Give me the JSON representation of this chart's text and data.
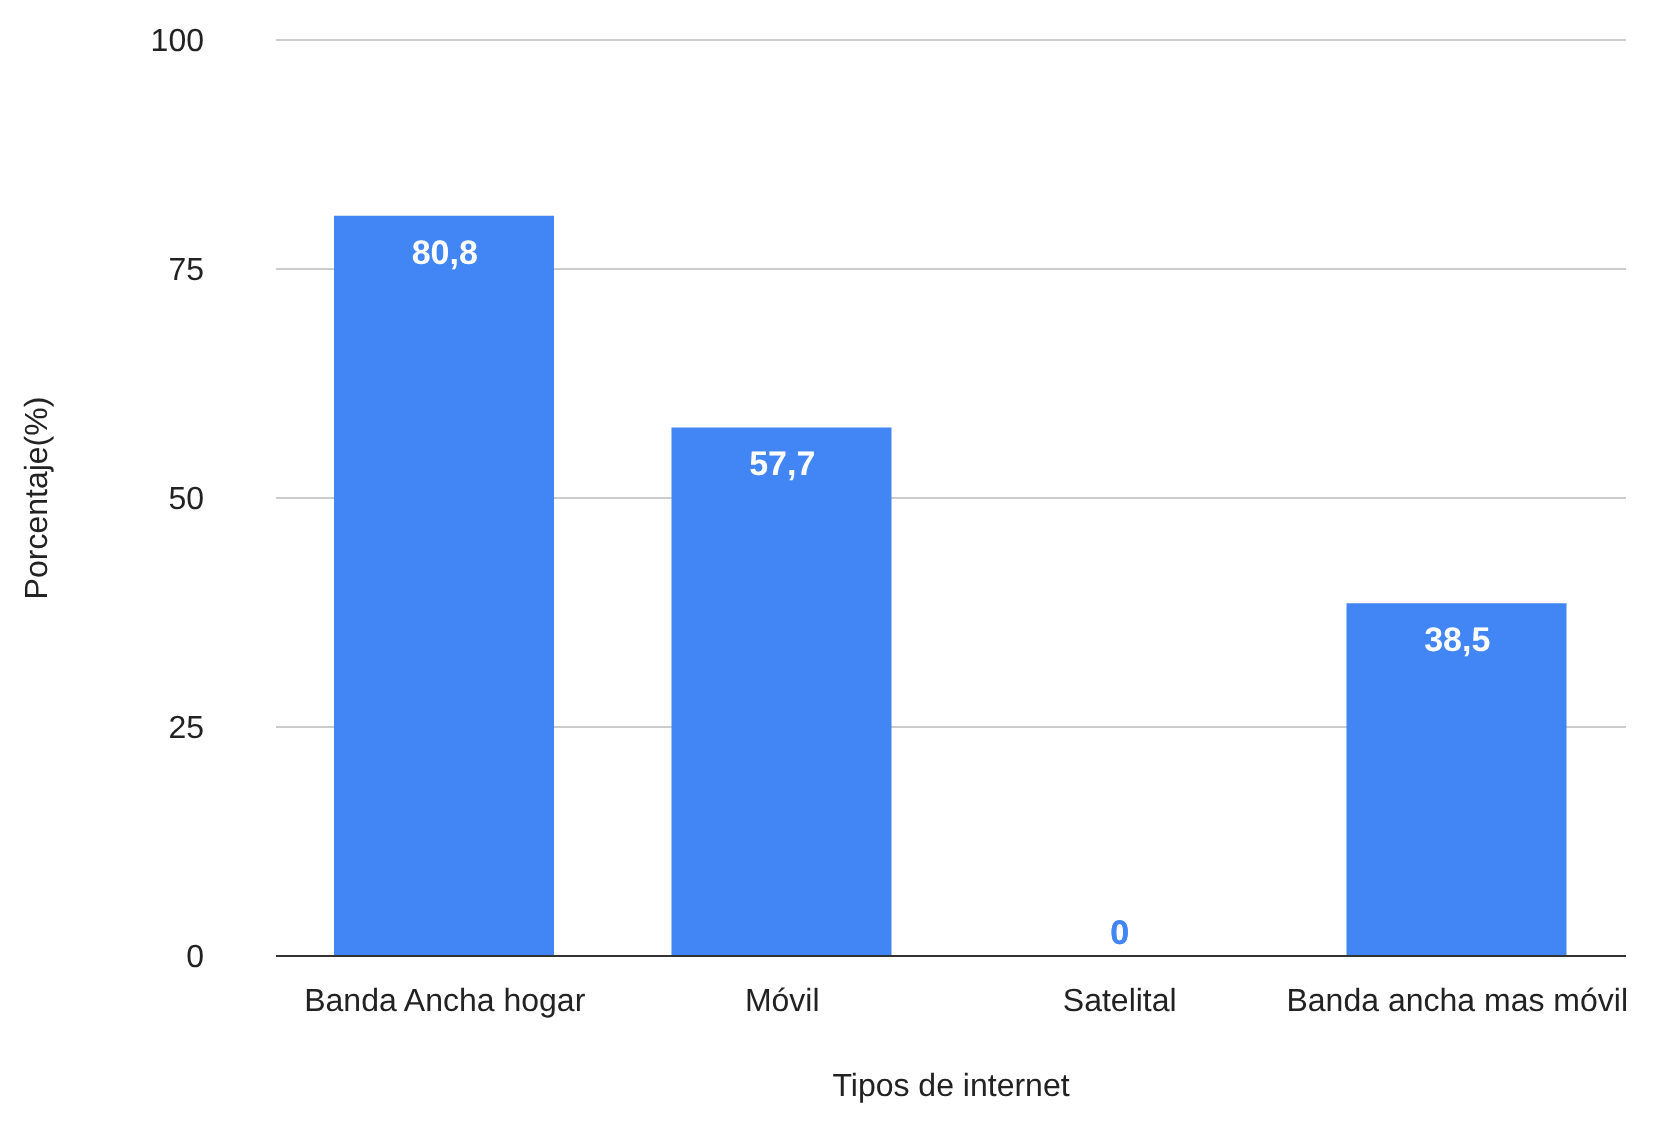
{
  "chart_data": {
    "type": "bar",
    "xlabel": "Tipos de internet",
    "ylabel": "Porcentaje(%)",
    "categories": [
      "Banda Ancha hogar",
      "Móvil",
      "Satelital",
      "Banda ancha mas móvil"
    ],
    "values": [
      80.8,
      57.7,
      0,
      38.5
    ],
    "value_labels": [
      "80,8",
      "57,7",
      "0",
      "38,5"
    ],
    "color": "#4285f4",
    "ylim": [
      0,
      100
    ],
    "yticks": [
      0,
      25,
      50,
      75,
      100
    ],
    "grid": "y",
    "legend": false
  }
}
